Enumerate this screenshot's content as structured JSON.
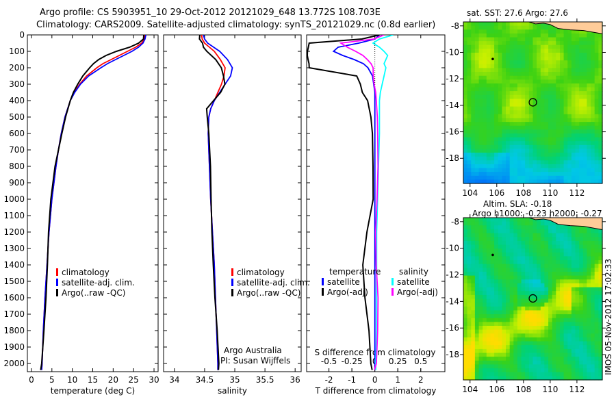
{
  "title_line1": "Argo profile: CS 5903951_10 29-Oct-2012 20121029_648 13.772S 108.703E",
  "title_line2": "Climatology: CARS2009. Satellite-adjusted climatology: synTS_20121029.nc (0.8d earlier)",
  "colors": {
    "climatology": "#ff0000",
    "satellite": "#0000ff",
    "argo": "#000000",
    "s_satellite": "#00ffff",
    "s_argo": "#ff00ff",
    "land": "#ffcc99"
  },
  "chart_data": [
    {
      "type": "line",
      "name": "temperature",
      "xlabel": "temperature (deg C)",
      "xlim": [
        -1,
        31
      ],
      "ylim": [
        2050,
        0
      ],
      "xticks": [
        0,
        5,
        10,
        15,
        20,
        25,
        30
      ],
      "yticks": [
        0,
        100,
        200,
        300,
        400,
        500,
        600,
        700,
        800,
        900,
        1000,
        1100,
        1200,
        1300,
        1400,
        1500,
        1600,
        1700,
        1800,
        1900,
        2000
      ],
      "depth": [
        0,
        25,
        50,
        75,
        100,
        125,
        150,
        175,
        200,
        250,
        300,
        350,
        400,
        500,
        600,
        700,
        800,
        1000,
        1200,
        1400,
        1600,
        1800,
        2000,
        2040
      ],
      "series": [
        {
          "name": "climatology",
          "color": "#ff0000",
          "values": [
            27.8,
            27.6,
            27.0,
            25.5,
            23.5,
            21.5,
            19.5,
            17.5,
            16.0,
            13.5,
            11.8,
            10.5,
            9.5,
            8.2,
            7.3,
            6.6,
            6.0,
            5.0,
            4.3,
            3.8,
            3.3,
            2.9,
            2.6,
            2.5
          ]
        },
        {
          "name": "satellite-adj. clim.",
          "color": "#0000ff",
          "values": [
            28.0,
            27.8,
            27.3,
            26.2,
            24.6,
            22.6,
            20.6,
            18.6,
            17.0,
            14.0,
            12.0,
            10.6,
            9.5,
            8.2,
            7.3,
            6.6,
            6.0,
            5.0,
            4.3,
            3.8,
            3.3,
            2.9,
            2.6,
            2.5
          ]
        },
        {
          "name": "Argo(..raw -QC)",
          "color": "#000000",
          "values": [
            27.5,
            27.2,
            26.0,
            24.0,
            21.0,
            18.5,
            16.5,
            15.0,
            14.0,
            12.5,
            11.5,
            10.5,
            9.6,
            8.2,
            7.2,
            6.5,
            5.9,
            5.0,
            4.3,
            3.8,
            3.3,
            2.9,
            2.6,
            2.5
          ]
        }
      ]
    },
    {
      "type": "line",
      "name": "salinity",
      "xlabel": "salinity",
      "xlim": [
        33.82,
        36.1
      ],
      "ylim": [
        2050,
        0
      ],
      "xticks": [
        34,
        34.5,
        35,
        35.5,
        36
      ],
      "depth": [
        0,
        25,
        50,
        75,
        100,
        150,
        200,
        250,
        300,
        350,
        400,
        450,
        500,
        600,
        800,
        1000,
        1200,
        1400,
        1600,
        1800,
        2000,
        2040
      ],
      "series": [
        {
          "name": "climatology",
          "color": "#ff0000",
          "values": [
            34.45,
            34.46,
            34.5,
            34.58,
            34.66,
            34.76,
            34.84,
            34.82,
            34.78,
            34.72,
            34.66,
            34.6,
            34.57,
            34.56,
            34.58,
            34.6,
            34.63,
            34.66,
            34.68,
            34.7,
            34.72,
            34.72
          ]
        },
        {
          "name": "satellite-adj. clim.",
          "color": "#0000ff",
          "values": [
            34.48,
            34.5,
            34.55,
            34.65,
            34.75,
            34.88,
            34.96,
            34.93,
            34.84,
            34.75,
            34.66,
            34.6,
            34.57,
            34.56,
            34.58,
            34.6,
            34.63,
            34.66,
            34.68,
            34.7,
            34.72,
            34.72
          ]
        },
        {
          "name": "Argo(..raw -QC)",
          "color": "#000000",
          "values": [
            34.42,
            34.4,
            34.45,
            34.48,
            34.55,
            34.7,
            34.78,
            34.8,
            34.82,
            34.76,
            34.66,
            34.55,
            34.55,
            34.56,
            34.58,
            34.6,
            34.63,
            34.66,
            34.68,
            34.7,
            34.72,
            34.72
          ]
        }
      ],
      "annotation": [
        "Argo Australia",
        "PI: Susan Wijffels"
      ]
    },
    {
      "type": "line",
      "name": "differences",
      "xlabel": "T difference from climatology",
      "x2label": "S difference from climatology",
      "xlim": [
        -2.97,
        3.05
      ],
      "x2lim": [
        -0.743,
        0.763
      ],
      "ylim": [
        2050,
        0
      ],
      "xticks": [
        -2,
        -1,
        0,
        1,
        2
      ],
      "x2ticks": [
        -0.5,
        -0.25,
        0,
        0.25,
        0.5
      ],
      "x2ticklabels": [
        "-0.5",
        "-0.25",
        "0",
        "0.25",
        "0.5"
      ],
      "depth": [
        0,
        25,
        50,
        75,
        100,
        125,
        150,
        175,
        200,
        250,
        300,
        350,
        400,
        500,
        600,
        800,
        1000,
        1200,
        1400,
        1600,
        1800,
        2000,
        2040
      ],
      "series": [
        {
          "name": "satellite",
          "group": "temperature",
          "axis": "T",
          "color": "#0000ff",
          "values": [
            0.2,
            0,
            -0.7,
            -1.6,
            -1.8,
            -1.4,
            -0.9,
            -0.5,
            -0.3,
            -0.1,
            -0.05,
            0,
            0,
            0,
            0,
            0,
            0,
            0,
            0,
            0,
            0,
            0,
            0
          ]
        },
        {
          "name": "Argo(-adj)",
          "group": "temperature",
          "axis": "T",
          "color": "#000000",
          "values": [
            0.2,
            -0.6,
            -2.9,
            -2.9,
            -2.9,
            -2.9,
            -2.9,
            -2.9,
            -2.9,
            -0.8,
            -0.6,
            -0.5,
            -0.3,
            -0.2,
            -0.15,
            -0.1,
            -0.05,
            -0.3,
            -0.5,
            -0.45,
            -0.3,
            -0.2,
            -0.1
          ]
        },
        {
          "name": "satellite",
          "group": "salinity",
          "axis": "S",
          "color": "#00ffff",
          "values": [
            0.2,
            0.05,
            -0.02,
            0.05,
            0.1,
            0.14,
            0.12,
            0.1,
            0.12,
            0.1,
            0.08,
            0.06,
            0.05,
            0.05,
            0.05,
            0.04,
            0.03,
            0.02,
            0.02,
            0.02,
            0.02,
            0.01,
            0.01
          ]
        },
        {
          "name": "Argo(-adj)",
          "group": "salinity",
          "axis": "S",
          "color": "#ff00ff",
          "values": [
            0.1,
            -0.02,
            -0.38,
            -0.3,
            -0.2,
            -0.12,
            -0.08,
            -0.05,
            -0.03,
            -0.02,
            0.0,
            0.02,
            0.02,
            0.02,
            0.02,
            0.03,
            0.03,
            0.02,
            0.02,
            0.03,
            0.02,
            0.01,
            0.0
          ]
        }
      ],
      "legend_headers": [
        "temperature",
        "salinity"
      ]
    },
    {
      "type": "heatmap",
      "name": "sst-map",
      "title": "sat. SST: 27.6 Argo: 27.6",
      "xlim": [
        103.5,
        113.9
      ],
      "ylim": [
        -19.9,
        -7.7
      ],
      "xticks": [
        104,
        106,
        108,
        110,
        112
      ],
      "yticks": [
        -8,
        -10,
        -12,
        -14,
        -16,
        -18
      ],
      "argo_position": [
        108.703,
        -13.772
      ],
      "marker": [
        105.7,
        -10.5
      ]
    },
    {
      "type": "heatmap",
      "name": "sla-map",
      "title": "Altim. SLA: -0.18",
      "subtitle": "Argo h1000: -0.23 h2000: -0.27",
      "xlim": [
        103.5,
        113.9
      ],
      "ylim": [
        -19.9,
        -7.7
      ],
      "xticks": [
        104,
        106,
        108,
        110,
        112
      ],
      "yticks": [
        -8,
        -10,
        -12,
        -14,
        -16,
        -18
      ],
      "argo_position": [
        108.703,
        -13.772
      ],
      "marker": [
        105.7,
        -10.5
      ]
    }
  ],
  "footer_stamp": "IMOS 05-Nov-2012 17:02:33"
}
